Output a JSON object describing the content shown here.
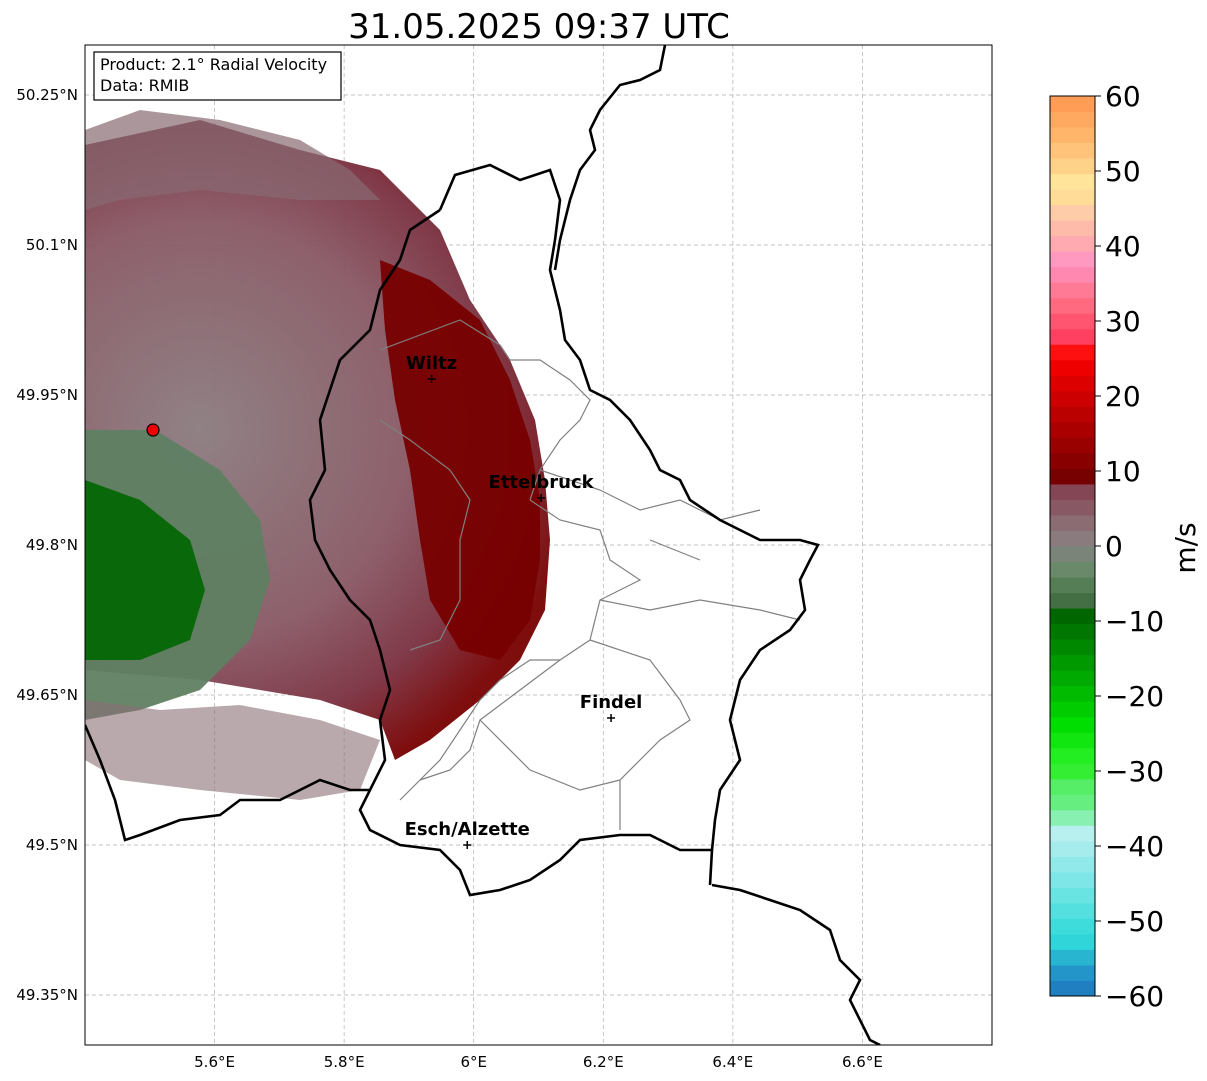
{
  "title": "31.05.2025 09:37 UTC",
  "info_box": {
    "product": "Product: 2.1° Radial Velocity",
    "data_source": "Data: RMIB"
  },
  "map": {
    "lon_range": [
      5.4,
      6.8
    ],
    "lat_range": [
      49.3,
      50.3
    ],
    "x_ticks": [
      {
        "value": 5.6,
        "label": "5.6°E"
      },
      {
        "value": 5.8,
        "label": "5.8°E"
      },
      {
        "value": 6.0,
        "label": "6°E"
      },
      {
        "value": 6.2,
        "label": "6.2°E"
      },
      {
        "value": 6.4,
        "label": "6.4°E"
      },
      {
        "value": 6.6,
        "label": "6.6°E"
      }
    ],
    "y_ticks": [
      {
        "value": 50.25,
        "label": "50.25°N"
      },
      {
        "value": 50.1,
        "label": "50.1°N"
      },
      {
        "value": 49.95,
        "label": "49.95°N"
      },
      {
        "value": 49.8,
        "label": "49.8°N"
      },
      {
        "value": 49.65,
        "label": "49.65°N"
      },
      {
        "value": 49.5,
        "label": "49.5°N"
      },
      {
        "value": 49.35,
        "label": "49.35°N"
      }
    ],
    "grid": true,
    "radar_site": {
      "lon": 5.505,
      "lat": 49.915,
      "color": "#ee0000"
    },
    "cities": [
      {
        "name": "Wiltz",
        "lon": 5.935,
        "lat": 49.966
      },
      {
        "name": "Ettelbruck",
        "lon": 6.104,
        "lat": 49.847
      },
      {
        "name": "Findel",
        "lon": 6.212,
        "lat": 49.627
      },
      {
        "name": "Esch/Alzette",
        "lon": 5.99,
        "lat": 49.5
      }
    ]
  },
  "colorbar": {
    "label": "m/s",
    "min": -60,
    "max": 60,
    "ticks": [
      {
        "value": 60,
        "label": "60"
      },
      {
        "value": 50,
        "label": "50"
      },
      {
        "value": 40,
        "label": "40"
      },
      {
        "value": 30,
        "label": "30"
      },
      {
        "value": 20,
        "label": "20"
      },
      {
        "value": 10,
        "label": "10"
      },
      {
        "value": 0,
        "label": "0"
      },
      {
        "value": -10,
        "label": "−10"
      },
      {
        "value": -20,
        "label": "−20"
      },
      {
        "value": -30,
        "label": "−30"
      },
      {
        "value": -40,
        "label": "−40"
      },
      {
        "value": -50,
        "label": "−50"
      },
      {
        "value": -60,
        "label": "−60"
      }
    ],
    "colors": [
      "#1f7fc0",
      "#2495c8",
      "#27b5d0",
      "#2fd5d8",
      "#3fdcdc",
      "#55e0e0",
      "#6ae3e3",
      "#7ee6e6",
      "#92e9e9",
      "#a6ecec",
      "#b8efef",
      "#88f0b0",
      "#66ee80",
      "#55ee66",
      "#33ee33",
      "#22ee22",
      "#11e611",
      "#00dd00",
      "#00cc00",
      "#00bb00",
      "#00aa00",
      "#009900",
      "#008800",
      "#007700",
      "#006600",
      "#446f44",
      "#567e56",
      "#6a886a",
      "#7a8478",
      "#8a7b7e",
      "#8a6c72",
      "#885864",
      "#844554",
      "#770000",
      "#880000",
      "#990000",
      "#aa0000",
      "#bb0000",
      "#cc0000",
      "#dd0000",
      "#ee0000",
      "#ff1010",
      "#ff4060",
      "#ff5570",
      "#ff6a80",
      "#ff7a95",
      "#ff88b0",
      "#ff99c0",
      "#ffaab0",
      "#ffbbaa",
      "#ffccaa",
      "#ffdd99",
      "#ffe49a",
      "#ffd28a",
      "#ffc47a",
      "#ffb66a",
      "#ffa860",
      "#ff9c55"
    ]
  }
}
